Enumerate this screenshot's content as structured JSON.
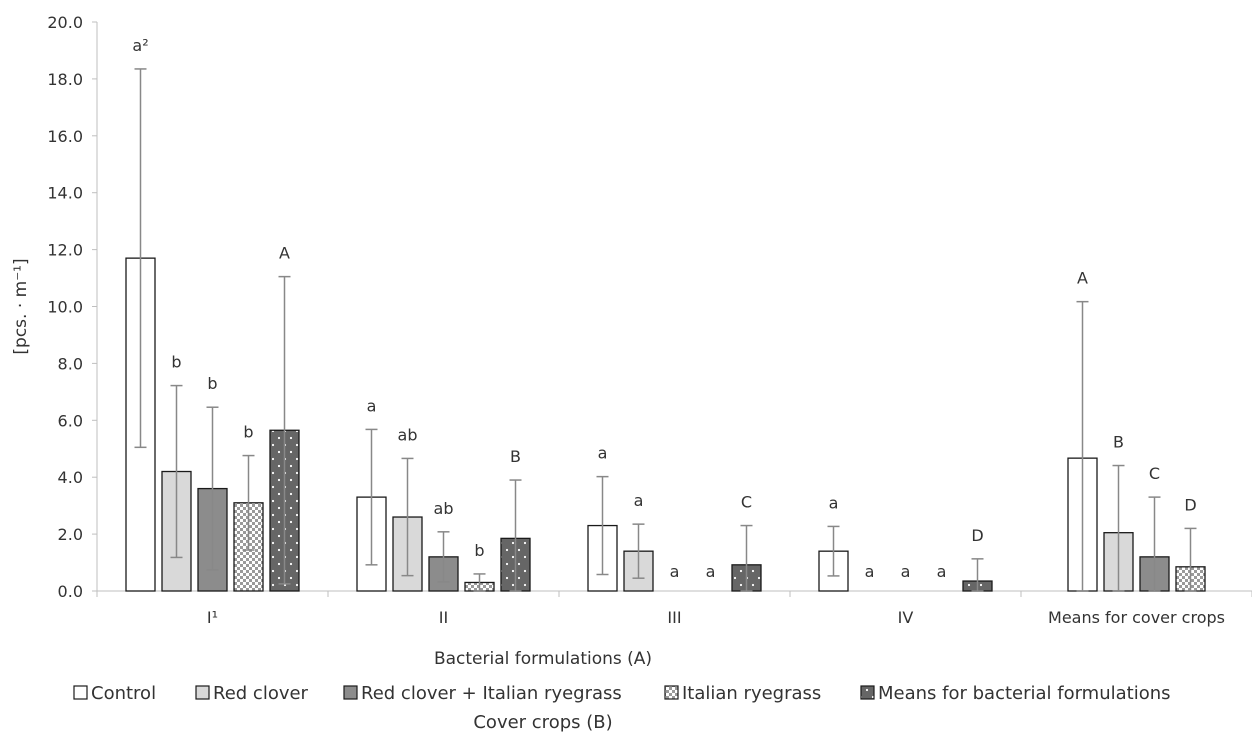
{
  "chart_data": {
    "type": "bar",
    "xlabel": "Bacterial formulations (A)",
    "ylabel": "[pcs. · m⁻¹]",
    "legend_title": "Cover crops (B)",
    "legend_position": "bottom",
    "grid": false,
    "ylim": [
      0,
      20
    ],
    "yticks": [
      "0.0",
      "2.0",
      "4.0",
      "6.0",
      "8.0",
      "10.0",
      "12.0",
      "14.0",
      "16.0",
      "18.0",
      "20.0"
    ],
    "categories": [
      "I¹",
      "II",
      "III",
      "IV",
      "Means for cover crops"
    ],
    "series": [
      {
        "name": "Control",
        "color": "#ffffff",
        "pattern": "none",
        "values": [
          11.7,
          3.3,
          2.3,
          1.4,
          4.67
        ],
        "errors": [
          6.65,
          2.38,
          1.72,
          0.87,
          5.5
        ],
        "labels": [
          "a²",
          "a",
          "a",
          "a",
          "A"
        ]
      },
      {
        "name": "Red clover",
        "color": "#d9d9d9",
        "pattern": "none",
        "values": [
          4.2,
          2.6,
          1.4,
          0,
          2.05
        ],
        "errors": [
          3.02,
          2.06,
          0.95,
          0,
          2.36
        ],
        "labels": [
          "b",
          "ab",
          "a",
          "a",
          "B"
        ]
      },
      {
        "name": "Red clover + Italian ryegrass",
        "color": "#8c8c8c",
        "pattern": "none",
        "values": [
          3.6,
          1.2,
          0,
          0,
          1.2
        ],
        "errors": [
          2.86,
          0.88,
          0,
          0,
          2.1
        ],
        "labels": [
          "b",
          "ab",
          "a",
          "a",
          "C"
        ]
      },
      {
        "name": "Italian ryegrass",
        "color": "#ffffff",
        "pattern": "checker",
        "values": [
          3.1,
          0.3,
          0,
          0,
          0.85
        ],
        "errors": [
          1.66,
          0.3,
          0,
          0,
          1.35
        ],
        "labels": [
          "b",
          "b",
          "a",
          "a",
          "D"
        ]
      },
      {
        "name": "Means for bacterial formulations",
        "color": "#666666",
        "pattern": "dots",
        "values": [
          5.65,
          1.85,
          0.92,
          0.35,
          null
        ],
        "errors": [
          5.4,
          2.05,
          1.38,
          0.78,
          null
        ],
        "labels": [
          "A",
          "B",
          "C",
          "D",
          ""
        ]
      }
    ]
  }
}
